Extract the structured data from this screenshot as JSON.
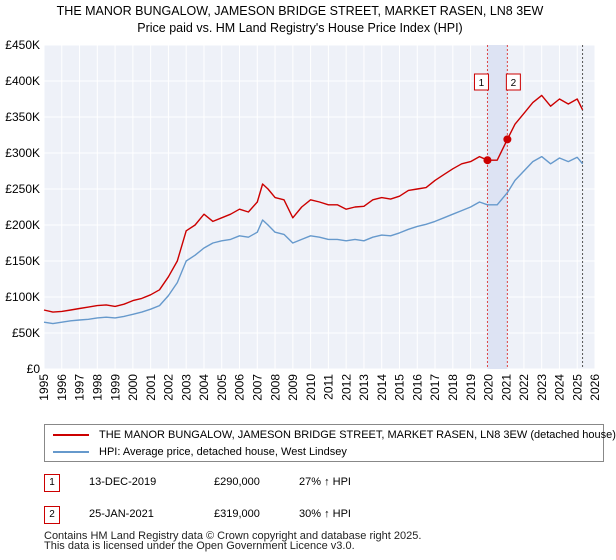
{
  "title": {
    "line1": "THE MANOR BUNGALOW, JAMESON BRIDGE STREET, MARKET RASEN, LN8 3EW",
    "line2": "Price paid vs. HM Land Registry's House Price Index (HPI)"
  },
  "chart_data": {
    "type": "line",
    "xlim": [
      1995,
      2026
    ],
    "ylim": [
      0,
      450000
    ],
    "x_ticks": [
      "1995",
      "1996",
      "1997",
      "1998",
      "1999",
      "2000",
      "2001",
      "2002",
      "2003",
      "2004",
      "2005",
      "2006",
      "2007",
      "2008",
      "2009",
      "2010",
      "2011",
      "2012",
      "2013",
      "2014",
      "2015",
      "2016",
      "2017",
      "2018",
      "2019",
      "2020",
      "2021",
      "2022",
      "2023",
      "2024",
      "2025",
      "2026"
    ],
    "y_ticks": [
      {
        "value": 0,
        "label": "£0"
      },
      {
        "value": 50000,
        "label": "£50K"
      },
      {
        "value": 100000,
        "label": "£100K"
      },
      {
        "value": 150000,
        "label": "£150K"
      },
      {
        "value": 200000,
        "label": "£200K"
      },
      {
        "value": 250000,
        "label": "£250K"
      },
      {
        "value": 300000,
        "label": "£300K"
      },
      {
        "value": 350000,
        "label": "£350K"
      },
      {
        "value": 400000,
        "label": "£400K"
      },
      {
        "value": 450000,
        "label": "£450K"
      }
    ],
    "grid": true,
    "series": [
      {
        "name": "THE MANOR BUNGALOW, JAMESON BRIDGE STREET, MARKET RASEN, LN8 3EW (detached house)",
        "color": "#cc0000",
        "x": [
          1995.0,
          1995.5,
          1996.0,
          1996.5,
          1997.0,
          1997.5,
          1998.0,
          1998.5,
          1999.0,
          1999.5,
          2000.0,
          2000.5,
          2001.0,
          2001.5,
          2002.0,
          2002.5,
          2003.0,
          2003.5,
          2004.0,
          2004.5,
          2005.0,
          2005.5,
          2006.0,
          2006.5,
          2007.0,
          2007.3,
          2007.6,
          2008.0,
          2008.5,
          2009.0,
          2009.5,
          2010.0,
          2010.5,
          2011.0,
          2011.5,
          2012.0,
          2012.5,
          2013.0,
          2013.5,
          2014.0,
          2014.5,
          2015.0,
          2015.5,
          2016.0,
          2016.5,
          2017.0,
          2017.5,
          2018.0,
          2018.5,
          2019.0,
          2019.5,
          2019.95,
          2020.5,
          2021.07,
          2021.5,
          2022.0,
          2022.5,
          2023.0,
          2023.5,
          2024.0,
          2024.5,
          2025.0,
          2025.3
        ],
        "values": [
          82000,
          79000,
          80000,
          82000,
          84000,
          86000,
          88000,
          89000,
          87000,
          90000,
          95000,
          98000,
          103000,
          110000,
          128000,
          150000,
          192000,
          200000,
          215000,
          205000,
          210000,
          215000,
          222000,
          218000,
          232000,
          257000,
          250000,
          238000,
          235000,
          210000,
          225000,
          235000,
          232000,
          228000,
          228000,
          222000,
          225000,
          226000,
          235000,
          238000,
          236000,
          240000,
          248000,
          250000,
          252000,
          262000,
          270000,
          278000,
          285000,
          288000,
          295000,
          290000,
          290000,
          319000,
          340000,
          355000,
          370000,
          380000,
          365000,
          375000,
          368000,
          375000,
          360000
        ]
      },
      {
        "name": "HPI: Average price, detached house, West Lindsey",
        "color": "#6699cc",
        "x": [
          1995.0,
          1995.5,
          1996.0,
          1996.5,
          1997.0,
          1997.5,
          1998.0,
          1998.5,
          1999.0,
          1999.5,
          2000.0,
          2000.5,
          2001.0,
          2001.5,
          2002.0,
          2002.5,
          2003.0,
          2003.5,
          2004.0,
          2004.5,
          2005.0,
          2005.5,
          2006.0,
          2006.5,
          2007.0,
          2007.3,
          2007.6,
          2008.0,
          2008.5,
          2009.0,
          2009.5,
          2010.0,
          2010.5,
          2011.0,
          2011.5,
          2012.0,
          2012.5,
          2013.0,
          2013.5,
          2014.0,
          2014.5,
          2015.0,
          2015.5,
          2016.0,
          2016.5,
          2017.0,
          2017.5,
          2018.0,
          2018.5,
          2019.0,
          2019.5,
          2019.95,
          2020.5,
          2021.07,
          2021.5,
          2022.0,
          2022.5,
          2023.0,
          2023.5,
          2024.0,
          2024.5,
          2025.0,
          2025.3
        ],
        "values": [
          65000,
          63000,
          65000,
          67000,
          68000,
          69000,
          71000,
          72000,
          71000,
          73000,
          76000,
          79000,
          83000,
          88000,
          102000,
          120000,
          150000,
          158000,
          168000,
          175000,
          178000,
          180000,
          185000,
          183000,
          190000,
          207000,
          200000,
          190000,
          187000,
          175000,
          180000,
          185000,
          183000,
          180000,
          180000,
          178000,
          180000,
          178000,
          183000,
          186000,
          185000,
          189000,
          194000,
          198000,
          201000,
          205000,
          210000,
          215000,
          220000,
          225000,
          232000,
          228000,
          228000,
          245000,
          262000,
          275000,
          288000,
          295000,
          285000,
          293000,
          288000,
          294000,
          285000
        ]
      }
    ],
    "vertical_lines": [
      2019.95,
      2021.07,
      2025.3
    ]
  },
  "sales": [
    {
      "marker": "1",
      "x": 2019.95,
      "date": "13-DEC-2019",
      "price_value": 290000,
      "price": "£290,000",
      "hpi": "27% ↑ HPI"
    },
    {
      "marker": "2",
      "x": 2021.07,
      "date": "25-JAN-2021",
      "price_value": 319000,
      "price": "£319,000",
      "hpi": "30% ↑ HPI"
    }
  ],
  "legend": {
    "property_label": "THE MANOR BUNGALOW, JAMESON BRIDGE STREET, MARKET RASEN, LN8 3EW (detached house)",
    "hpi_label": "HPI: Average price, detached house, West Lindsey",
    "property_color": "#cc0000",
    "hpi_color": "#6699cc"
  },
  "footer": {
    "line1": "Contains HM Land Registry data © Crown copyright and database right 2025.",
    "line2": "This data is licensed under the Open Government Licence v3.0."
  }
}
